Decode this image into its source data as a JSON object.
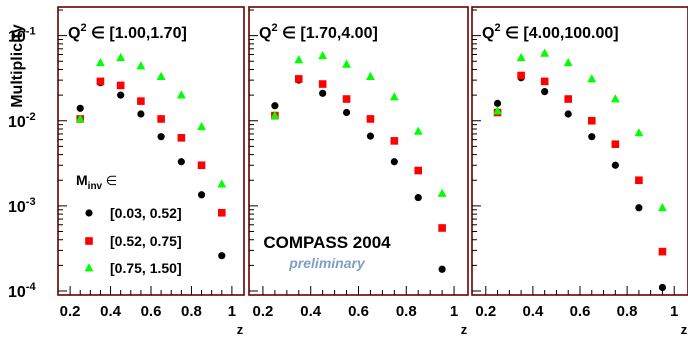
{
  "chart_data": [
    {
      "type": "scatter",
      "title": "Q",
      "title_sup": "2",
      "title_rest": " ∈ [1.00,1.70]",
      "xlabel": "z",
      "ylabel": "Multiplicity",
      "xlim": [
        0.15,
        1.05
      ],
      "ylim": [
        0.0001,
        0.2
      ],
      "yscale": "log",
      "x_ticks": [
        "0.2",
        "0.4",
        "0.6",
        "0.8",
        "1"
      ],
      "series": [
        {
          "name": "[0.03, 0.52]",
          "color": "#000000",
          "marker": "circle",
          "x": [
            0.25,
            0.35,
            0.45,
            0.55,
            0.65,
            0.75,
            0.85,
            0.95
          ],
          "y": [
            0.014,
            0.028,
            0.02,
            0.012,
            0.0065,
            0.0033,
            0.00135,
            0.00026
          ]
        },
        {
          "name": "[0.52, 0.75]",
          "color": "#ff0000",
          "marker": "square",
          "x": [
            0.25,
            0.35,
            0.45,
            0.55,
            0.65,
            0.75,
            0.85,
            0.95
          ],
          "y": [
            0.0105,
            0.029,
            0.026,
            0.017,
            0.0105,
            0.0063,
            0.003,
            0.00083
          ]
        },
        {
          "name": "[0.75, 1.50]",
          "color": "#00ff00",
          "marker": "triangle",
          "x": [
            0.25,
            0.35,
            0.45,
            0.55,
            0.65,
            0.75,
            0.85,
            0.95
          ],
          "y": [
            0.0105,
            0.048,
            0.055,
            0.044,
            0.033,
            0.02,
            0.0085,
            0.0018
          ]
        }
      ]
    },
    {
      "type": "scatter",
      "title": "Q",
      "title_sup": "2",
      "title_rest": " ∈ [1.70,4.00]",
      "xlabel": "z",
      "xlim": [
        0.15,
        1.05
      ],
      "ylim": [
        0.0001,
        0.2
      ],
      "yscale": "log",
      "x_ticks": [
        "0.2",
        "0.4",
        "0.6",
        "0.8",
        "1"
      ],
      "series": [
        {
          "name": "[0.03, 0.52]",
          "color": "#000000",
          "marker": "circle",
          "x": [
            0.25,
            0.35,
            0.45,
            0.55,
            0.65,
            0.75,
            0.85,
            0.95
          ],
          "y": [
            0.015,
            0.03,
            0.021,
            0.0125,
            0.0066,
            0.0033,
            0.00125,
            0.00018
          ]
        },
        {
          "name": "[0.52, 0.75]",
          "color": "#ff0000",
          "marker": "square",
          "x": [
            0.25,
            0.35,
            0.45,
            0.55,
            0.65,
            0.75,
            0.85,
            0.95
          ],
          "y": [
            0.0115,
            0.031,
            0.027,
            0.018,
            0.0105,
            0.0058,
            0.0026,
            0.00055
          ]
        },
        {
          "name": "[0.75, 1.50]",
          "color": "#00ff00",
          "marker": "triangle",
          "x": [
            0.25,
            0.35,
            0.45,
            0.55,
            0.65,
            0.75,
            0.85,
            0.95
          ],
          "y": [
            0.0115,
            0.052,
            0.058,
            0.046,
            0.033,
            0.019,
            0.0075,
            0.0014
          ]
        }
      ]
    },
    {
      "type": "scatter",
      "title": "Q",
      "title_sup": "2",
      "title_rest": " ∈ [4.00,100.00]",
      "xlabel": "z",
      "xlim": [
        0.15,
        1.05
      ],
      "ylim": [
        0.0001,
        0.2
      ],
      "yscale": "log",
      "x_ticks": [
        "0.2",
        "0.4",
        "0.6",
        "0.8",
        "1"
      ],
      "series": [
        {
          "name": "[0.03, 0.52]",
          "color": "#000000",
          "marker": "circle",
          "x": [
            0.25,
            0.35,
            0.45,
            0.55,
            0.65,
            0.75,
            0.85,
            0.95
          ],
          "y": [
            0.016,
            0.032,
            0.022,
            0.012,
            0.0065,
            0.003,
            0.00095,
            0.00011
          ]
        },
        {
          "name": "[0.52, 0.75]",
          "color": "#ff0000",
          "marker": "square",
          "x": [
            0.25,
            0.35,
            0.45,
            0.55,
            0.65,
            0.75,
            0.85,
            0.95
          ],
          "y": [
            0.0125,
            0.034,
            0.029,
            0.018,
            0.01,
            0.0053,
            0.002,
            0.00029
          ]
        },
        {
          "name": "[0.75, 1.50]",
          "color": "#00ff00",
          "marker": "triangle",
          "x": [
            0.25,
            0.35,
            0.45,
            0.55,
            0.65,
            0.75,
            0.85,
            0.95
          ],
          "y": [
            0.013,
            0.055,
            0.062,
            0.048,
            0.031,
            0.018,
            0.0072,
            0.00095
          ]
        }
      ]
    }
  ],
  "y_tick_labels": [
    {
      "base": "10",
      "exp": "-1",
      "value": 0.1
    },
    {
      "base": "10",
      "exp": "-2",
      "value": 0.01
    },
    {
      "base": "10",
      "exp": "-3",
      "value": 0.001
    },
    {
      "base": "10",
      "exp": "-4",
      "value": 0.0001
    }
  ],
  "legend": {
    "heading_main": "M",
    "heading_sub": "inv",
    "heading_rest": " ∈",
    "entries": [
      "[0.03, 0.52]",
      "[0.52, 0.75]",
      "[0.75, 1.50]"
    ]
  },
  "annotation": {
    "experiment": "COMPASS 2004",
    "status": "preliminary",
    "status_color": "#7f9fc8"
  }
}
